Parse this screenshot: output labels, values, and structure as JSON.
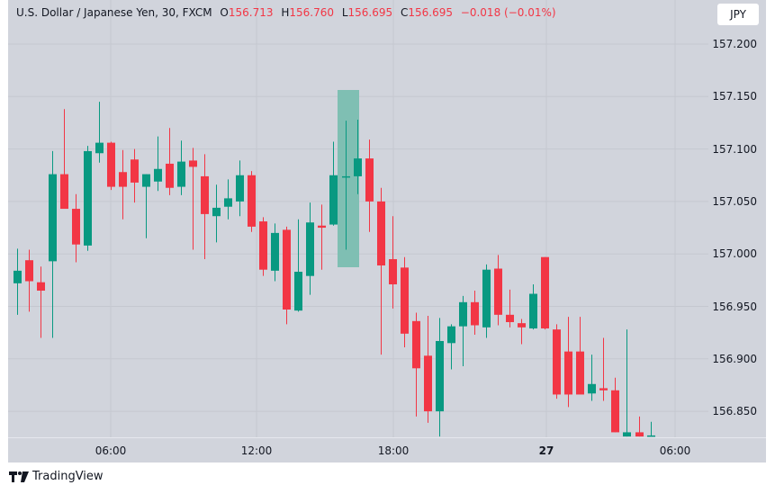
{
  "header": {
    "symbol_title": "U.S. Dollar / Japanese Yen, 30, FXCM",
    "open_label": "O",
    "open_value": "156.713",
    "high_label": "H",
    "high_value": "156.760",
    "low_label": "L",
    "low_value": "156.695",
    "close_label": "C",
    "close_value": "156.695",
    "change": "−0.018 (−0.01%)"
  },
  "currency_button": "JPY",
  "branding": {
    "logo_icon": "tradingview-logo-icon",
    "name": "TradingView"
  },
  "colors": {
    "up": "#089981",
    "down": "#f23645",
    "background": "#d1d4dc",
    "grid": "#c5c8d0",
    "highlight": "#7fbfb3",
    "value_text": "#f23645"
  },
  "price_axis": {
    "labels": [
      "157.200",
      "157.150",
      "157.100",
      "157.050",
      "157.000",
      "156.950",
      "156.900",
      "156.850"
    ]
  },
  "time_axis": {
    "labels": [
      {
        "text": "06:00",
        "bold": false
      },
      {
        "text": "12:00",
        "bold": false
      },
      {
        "text": "18:00",
        "bold": false
      },
      {
        "text": "27",
        "bold": true
      },
      {
        "text": "06:00",
        "bold": false
      }
    ]
  },
  "chart_data": {
    "type": "candlestick",
    "title": "U.S. Dollar / Japanese Yen, 30, FXCM",
    "interval": "30 minutes",
    "xlabel": "",
    "ylabel": "JPY",
    "ylim": [
      156.82,
      157.24
    ],
    "y_ticks": [
      157.2,
      157.15,
      157.1,
      157.05,
      157.0,
      156.95,
      156.9,
      156.85
    ],
    "x_ticks": [
      "06:00",
      "12:00",
      "18:00",
      "27",
      "06:00"
    ],
    "grid": true,
    "last_bar": {
      "open": 156.713,
      "high": 156.76,
      "low": 156.695,
      "close": 156.695,
      "change": -0.018,
      "change_pct": -0.01
    },
    "highlight_bar_index": 28,
    "candles": [
      {
        "o": 156.972,
        "h": 157.005,
        "l": 156.942,
        "c": 156.984,
        "x": 19
      },
      {
        "o": 156.994,
        "h": 157.004,
        "l": 156.945,
        "c": 156.974,
        "x": 32
      },
      {
        "o": 156.973,
        "h": 156.988,
        "l": 156.92,
        "c": 156.965,
        "x": 45
      },
      {
        "o": 156.993,
        "h": 157.098,
        "l": 156.92,
        "c": 157.076,
        "x": 58
      },
      {
        "o": 157.076,
        "h": 157.138,
        "l": 157.055,
        "c": 157.043,
        "x": 71
      },
      {
        "o": 157.043,
        "h": 157.057,
        "l": 156.992,
        "c": 157.009,
        "x": 84
      },
      {
        "o": 157.008,
        "h": 157.103,
        "l": 157.003,
        "c": 157.098,
        "x": 97
      },
      {
        "o": 157.096,
        "h": 157.145,
        "l": 157.087,
        "c": 157.106,
        "x": 110
      },
      {
        "o": 157.106,
        "h": 157.107,
        "l": 157.061,
        "c": 157.064,
        "x": 123
      },
      {
        "o": 157.078,
        "h": 157.099,
        "l": 157.033,
        "c": 157.064,
        "x": 136
      },
      {
        "o": 157.09,
        "h": 157.1,
        "l": 157.049,
        "c": 157.068,
        "x": 149
      },
      {
        "o": 157.064,
        "h": 157.076,
        "l": 157.015,
        "c": 157.076,
        "x": 162
      },
      {
        "o": 157.069,
        "h": 157.112,
        "l": 157.06,
        "c": 157.081,
        "x": 175
      },
      {
        "o": 157.086,
        "h": 157.12,
        "l": 157.056,
        "c": 157.063,
        "x": 188
      },
      {
        "o": 157.064,
        "h": 157.108,
        "l": 157.056,
        "c": 157.088,
        "x": 201
      },
      {
        "o": 157.089,
        "h": 157.101,
        "l": 157.004,
        "c": 157.083,
        "x": 214
      },
      {
        "o": 157.074,
        "h": 157.095,
        "l": 156.995,
        "c": 157.038,
        "x": 227
      },
      {
        "o": 157.036,
        "h": 157.066,
        "l": 157.011,
        "c": 157.044,
        "x": 240
      },
      {
        "o": 157.045,
        "h": 157.071,
        "l": 157.033,
        "c": 157.053,
        "x": 253
      },
      {
        "o": 157.05,
        "h": 157.089,
        "l": 157.036,
        "c": 157.075,
        "x": 266
      },
      {
        "o": 157.075,
        "h": 157.079,
        "l": 157.021,
        "c": 157.026,
        "x": 279
      },
      {
        "o": 157.031,
        "h": 157.035,
        "l": 156.979,
        "c": 156.985,
        "x": 292
      },
      {
        "o": 156.984,
        "h": 157.029,
        "l": 156.974,
        "c": 157.02,
        "x": 305
      },
      {
        "o": 157.023,
        "h": 157.026,
        "l": 156.933,
        "c": 156.947,
        "x": 318
      },
      {
        "o": 156.946,
        "h": 157.033,
        "l": 156.945,
        "c": 156.983,
        "x": 331
      },
      {
        "o": 156.979,
        "h": 157.049,
        "l": 156.961,
        "c": 157.03,
        "x": 344
      },
      {
        "o": 157.027,
        "h": 157.047,
        "l": 156.985,
        "c": 157.025,
        "x": 357
      },
      {
        "o": 157.028,
        "h": 157.107,
        "l": 157.027,
        "c": 157.075,
        "x": 370
      },
      {
        "o": 157.074,
        "h": 157.127,
        "l": 157.004,
        "c": 157.074,
        "x": 384
      },
      {
        "o": 157.074,
        "h": 157.128,
        "l": 157.057,
        "c": 157.091,
        "x": 397
      },
      {
        "o": 157.091,
        "h": 157.109,
        "l": 157.021,
        "c": 157.05,
        "x": 410
      },
      {
        "o": 157.05,
        "h": 157.063,
        "l": 156.904,
        "c": 156.989,
        "x": 423
      },
      {
        "o": 156.995,
        "h": 157.036,
        "l": 156.948,
        "c": 156.971,
        "x": 436
      },
      {
        "o": 156.987,
        "h": 156.997,
        "l": 156.911,
        "c": 156.924,
        "x": 449
      },
      {
        "o": 156.936,
        "h": 156.944,
        "l": 156.845,
        "c": 156.891,
        "x": 462
      },
      {
        "o": 156.903,
        "h": 156.941,
        "l": 156.839,
        "c": 156.85,
        "x": 475
      },
      {
        "o": 156.85,
        "h": 156.939,
        "l": 156.826,
        "c": 156.917,
        "x": 488
      },
      {
        "o": 156.915,
        "h": 156.933,
        "l": 156.89,
        "c": 156.931,
        "x": 501
      },
      {
        "o": 156.931,
        "h": 156.96,
        "l": 156.893,
        "c": 156.954,
        "x": 514
      },
      {
        "o": 156.954,
        "h": 156.965,
        "l": 156.923,
        "c": 156.932,
        "x": 527
      },
      {
        "o": 156.93,
        "h": 156.99,
        "l": 156.92,
        "c": 156.985,
        "x": 540
      },
      {
        "o": 156.986,
        "h": 156.999,
        "l": 156.932,
        "c": 156.942,
        "x": 553
      },
      {
        "o": 156.942,
        "h": 156.966,
        "l": 156.93,
        "c": 156.935,
        "x": 566
      },
      {
        "o": 156.934,
        "h": 156.938,
        "l": 156.914,
        "c": 156.93,
        "x": 579
      },
      {
        "o": 156.929,
        "h": 156.971,
        "l": 156.928,
        "c": 156.962,
        "x": 592
      },
      {
        "o": 156.997,
        "h": 156.997,
        "l": 156.928,
        "c": 156.929,
        "x": 605
      },
      {
        "o": 156.928,
        "h": 156.933,
        "l": 156.862,
        "c": 156.866,
        "x": 618
      },
      {
        "o": 156.907,
        "h": 156.94,
        "l": 156.854,
        "c": 156.866,
        "x": 631
      },
      {
        "o": 156.907,
        "h": 156.94,
        "l": 156.867,
        "c": 156.866,
        "x": 644
      },
      {
        "o": 156.867,
        "h": 156.904,
        "l": 156.86,
        "c": 156.876,
        "x": 657
      },
      {
        "o": 156.872,
        "h": 156.92,
        "l": 156.86,
        "c": 156.87,
        "x": 670
      },
      {
        "o": 156.87,
        "h": 156.882,
        "l": 156.83,
        "c": 156.83,
        "x": 683
      },
      {
        "o": 156.826,
        "h": 156.928,
        "l": 156.826,
        "c": 156.83,
        "x": 696
      },
      {
        "o": 156.83,
        "h": 156.845,
        "l": 156.826,
        "c": 156.826,
        "x": 710
      },
      {
        "o": 156.826,
        "h": 156.84,
        "l": 156.826,
        "c": 156.827,
        "x": 723
      }
    ]
  }
}
